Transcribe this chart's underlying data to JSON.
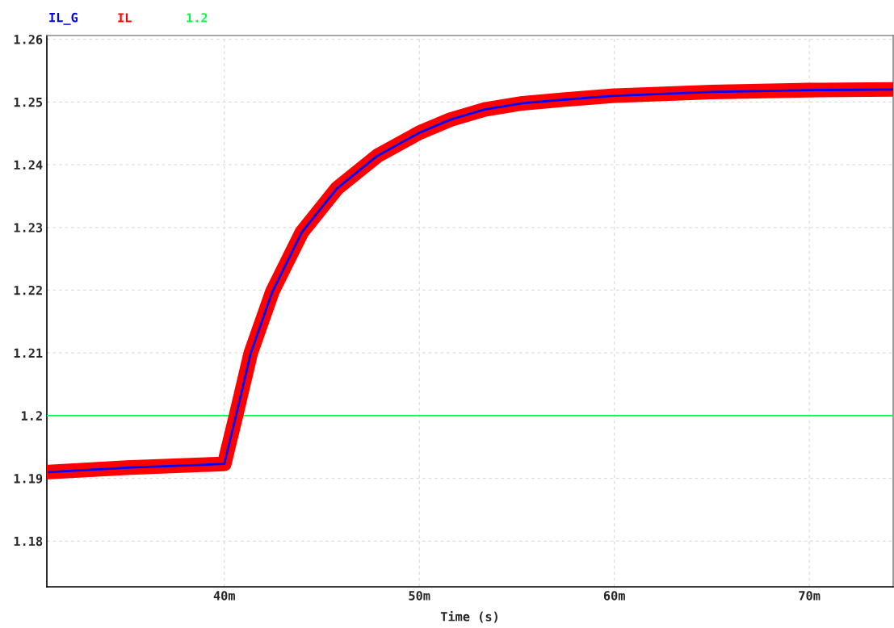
{
  "chart_data": {
    "type": "line",
    "xlabel": "Time (s)",
    "x": [
      31.0,
      35.0,
      40.0,
      40.6,
      41.36,
      42.47,
      43.97,
      45.77,
      47.84,
      50.0,
      51.6,
      53.35,
      55.3,
      57.5,
      60.0,
      65.0,
      70.0,
      74.3
    ],
    "series": [
      {
        "name": "IL_G",
        "color": "#0000ff",
        "values": [
          1.191,
          1.1917,
          1.1923,
          1.2,
          1.21,
          1.2198,
          1.2292,
          1.2362,
          1.2414,
          1.2451,
          1.2472,
          1.2488,
          1.2498,
          1.2504,
          1.251,
          1.2516,
          1.2519,
          1.252
        ]
      },
      {
        "name": "IL",
        "color": "#ff0000",
        "values": [
          1.191,
          1.1917,
          1.1923,
          1.2,
          1.21,
          1.2198,
          1.2292,
          1.2362,
          1.2414,
          1.2451,
          1.2472,
          1.2488,
          1.2498,
          1.2504,
          1.251,
          1.2516,
          1.2519,
          1.252
        ]
      },
      {
        "name": "1.2",
        "color": "#00ff40",
        "x": [
          30.9,
          74.3
        ],
        "values": [
          1.2,
          1.2
        ]
      }
    ],
    "xlim": [
      30.9,
      74.3
    ],
    "ylim": [
      1.1727,
      1.2606
    ],
    "xticks": [
      {
        "value": 40,
        "label": "40m"
      },
      {
        "value": 50,
        "label": "50m"
      },
      {
        "value": 60,
        "label": "60m"
      },
      {
        "value": 70,
        "label": "70m"
      }
    ],
    "yticks": [
      1.18,
      1.19,
      1.2,
      1.21,
      1.22,
      1.23,
      1.24,
      1.25,
      1.26
    ],
    "grid": true,
    "legend": "top left",
    "marker": "none",
    "line_style": "solid"
  }
}
